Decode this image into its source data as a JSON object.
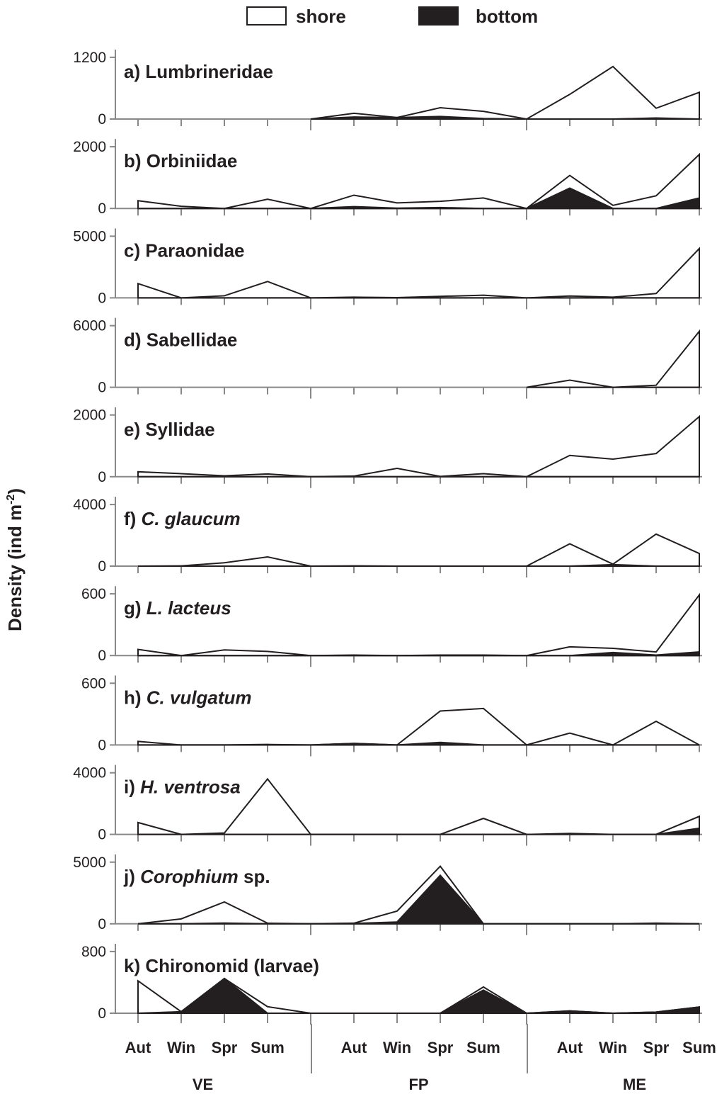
{
  "legend": [
    {
      "name": "shore",
      "color": "#ffffff"
    },
    {
      "name": "bottom",
      "color": "#231f20"
    }
  ],
  "y_label": {
    "text": "Density (ind m",
    "sup": "-2",
    "end": ")"
  },
  "categories": [
    "Aut",
    "Win",
    "Spr",
    "Sum",
    null,
    "Aut",
    "Win",
    "Spr",
    "Sum",
    null,
    "Aut",
    "Win",
    "Spr",
    "Sum"
  ],
  "groups": [
    "VE",
    "FP",
    "ME"
  ],
  "chart_data": [
    {
      "type": "area",
      "title": [
        {
          "text": "a) Lumbrineridae"
        }
      ],
      "ylim": [
        0,
        1350
      ],
      "yticks": [
        0,
        1200
      ],
      "series": [
        {
          "values": [
            null,
            null,
            null,
            null,
            0,
            112,
            30,
            220,
            150,
            0,
            480,
            1020,
            210,
            520
          ]
        },
        {
          "values": [
            null,
            null,
            null,
            null,
            0,
            40,
            30,
            50,
            10,
            0,
            0,
            0,
            20,
            0
          ]
        }
      ]
    },
    {
      "type": "area",
      "title": [
        {
          "text": "b) Orbiniidae"
        }
      ],
      "ylim": [
        0,
        2250
      ],
      "yticks": [
        0,
        2000
      ],
      "series": [
        {
          "values": [
            250,
            70,
            0,
            300,
            0,
            430,
            180,
            230,
            340,
            0,
            1070,
            100,
            410,
            1750
          ]
        },
        {
          "values": [
            0,
            0,
            0,
            0,
            0,
            60,
            10,
            30,
            0,
            0,
            660,
            0,
            0,
            340
          ]
        }
      ]
    },
    {
      "type": "area",
      "title": [
        {
          "text": "c) Paraonidae"
        }
      ],
      "ylim": [
        0,
        5630
      ],
      "yticks": [
        0,
        5000
      ],
      "series": [
        {
          "values": [
            1160,
            0,
            170,
            1330,
            0,
            60,
            20,
            120,
            220,
            0,
            150,
            60,
            350,
            4000
          ]
        },
        {
          "values": [
            0,
            0,
            0,
            0,
            0,
            0,
            0,
            0,
            0,
            0,
            0,
            0,
            0,
            0
          ]
        }
      ]
    },
    {
      "type": "area",
      "title": [
        {
          "text": "d) Sabellidae"
        }
      ],
      "ylim": [
        0,
        6760
      ],
      "yticks": [
        0,
        6000
      ],
      "series": [
        {
          "values": [
            null,
            null,
            null,
            null,
            null,
            null,
            null,
            null,
            null,
            0,
            700,
            0,
            200,
            5450
          ]
        },
        {
          "values": [
            null,
            null,
            null,
            null,
            null,
            null,
            null,
            null,
            null,
            0,
            0,
            0,
            0,
            0
          ]
        }
      ]
    },
    {
      "type": "area",
      "title": [
        {
          "text": "e) Syllidae"
        }
      ],
      "ylim": [
        0,
        2250
      ],
      "yticks": [
        0,
        2000
      ],
      "series": [
        {
          "values": [
            160,
            100,
            30,
            90,
            0,
            20,
            270,
            10,
            100,
            0,
            690,
            570,
            750,
            1950
          ]
        },
        {
          "values": [
            0,
            0,
            0,
            0,
            0,
            0,
            0,
            0,
            0,
            0,
            0,
            0,
            0,
            0
          ]
        }
      ]
    },
    {
      "type": "area",
      "title": [
        {
          "text": "f) "
        },
        {
          "text": "C. glaucum",
          "italic": true
        }
      ],
      "ylim": [
        0,
        4510
      ],
      "yticks": [
        0,
        4000
      ],
      "series": [
        {
          "values": [
            0,
            20,
            220,
            600,
            0,
            20,
            0,
            0,
            0,
            0,
            1450,
            130,
            2080,
            820
          ]
        },
        {
          "values": [
            0,
            0,
            0,
            0,
            0,
            0,
            0,
            0,
            0,
            0,
            0,
            100,
            0,
            0
          ]
        }
      ]
    },
    {
      "type": "area",
      "title": [
        {
          "text": "g) "
        },
        {
          "text": "L. lacteus",
          "italic": true
        }
      ],
      "ylim": [
        0,
        675
      ],
      "yticks": [
        0,
        600
      ],
      "series": [
        {
          "values": [
            60,
            0,
            55,
            40,
            0,
            5,
            0,
            5,
            5,
            0,
            85,
            70,
            35,
            590
          ]
        },
        {
          "values": [
            0,
            0,
            0,
            0,
            0,
            0,
            0,
            0,
            0,
            0,
            0,
            30,
            5,
            35
          ]
        }
      ]
    },
    {
      "type": "area",
      "title": [
        {
          "text": "h) "
        },
        {
          "text": "C. vulgatum",
          "italic": true
        }
      ],
      "ylim": [
        0,
        675
      ],
      "yticks": [
        0,
        600
      ],
      "series": [
        {
          "values": [
            35,
            0,
            0,
            5,
            0,
            15,
            0,
            330,
            355,
            0,
            115,
            0,
            230,
            0
          ]
        },
        {
          "values": [
            0,
            0,
            0,
            0,
            0,
            15,
            0,
            25,
            0,
            0,
            0,
            0,
            0,
            0
          ]
        }
      ]
    },
    {
      "type": "area",
      "title": [
        {
          "text": "i) "
        },
        {
          "text": "H. ventrosa",
          "italic": true
        }
      ],
      "ylim": [
        0,
        4510
      ],
      "yticks": [
        0,
        4000
      ],
      "series": [
        {
          "values": [
            770,
            0,
            90,
            3600,
            0,
            0,
            0,
            0,
            1040,
            0,
            60,
            0,
            0,
            1170
          ]
        },
        {
          "values": [
            0,
            0,
            0,
            0,
            0,
            0,
            0,
            0,
            0,
            0,
            0,
            0,
            0,
            400
          ]
        }
      ]
    },
    {
      "type": "area",
      "title": [
        {
          "text": "j) "
        },
        {
          "text": "Corophium",
          "italic": true
        },
        {
          "text": " sp."
        }
      ],
      "ylim": [
        0,
        5630
      ],
      "yticks": [
        0,
        5000
      ],
      "series": [
        {
          "values": [
            0,
            400,
            1770,
            50,
            0,
            50,
            1030,
            4670,
            0,
            0,
            0,
            0,
            50,
            0
          ]
        },
        {
          "values": [
            0,
            0,
            60,
            0,
            0,
            30,
            150,
            3930,
            0,
            0,
            0,
            0,
            0,
            0
          ]
        }
      ]
    },
    {
      "type": "area",
      "title": [
        {
          "text": "k) Chironomid (larvae)"
        }
      ],
      "ylim": [
        0,
        900
      ],
      "yticks": [
        0,
        800
      ],
      "series": [
        {
          "values": [
            420,
            20,
            450,
            85,
            0,
            0,
            0,
            0,
            340,
            0,
            30,
            0,
            15,
            80
          ]
        },
        {
          "values": [
            0,
            20,
            450,
            0,
            0,
            0,
            0,
            0,
            300,
            0,
            30,
            0,
            15,
            80
          ]
        }
      ]
    }
  ]
}
